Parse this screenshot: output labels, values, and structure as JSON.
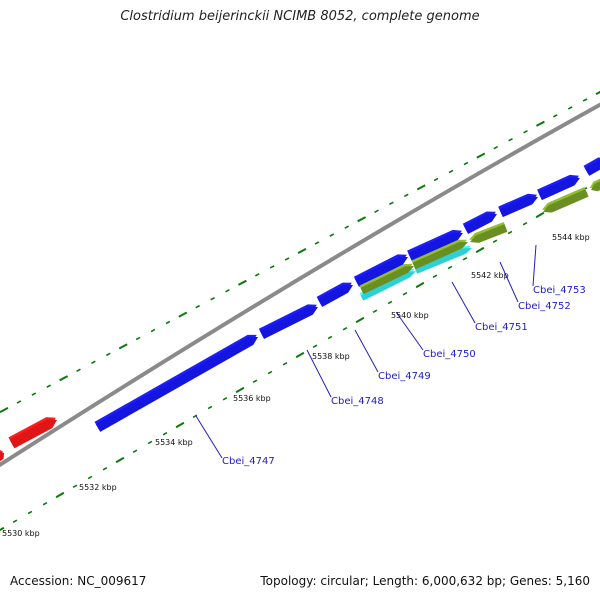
{
  "title": "Clostridium beijerinckii NCIMB 8052, complete genome",
  "accession": "Accession: NC_009617",
  "topology": "Topology: circular; Length: 6,000,632 bp; Genes: 5,160",
  "colors": {
    "backbone": "#8a8a8a",
    "forward_gene": "#1515e0",
    "reverse_gene": "#e01515",
    "green_feature": "#6b8e23",
    "cyan_feature": "#2ed1d1",
    "tick": "#0a7a0a",
    "label_line": "#2020c0"
  },
  "tick_labels": [
    "5530 kbp",
    "5532 kbp",
    "5534 kbp",
    "5536 kbp",
    "5538 kbp",
    "5540 kbp",
    "5542 kbp",
    "5544 kbp"
  ],
  "gene_labels": [
    "Cbei_4747",
    "Cbei_4748",
    "Cbei_4749",
    "Cbei_4750",
    "Cbei_4751",
    "Cbei_4752",
    "Cbei_4753"
  ]
}
